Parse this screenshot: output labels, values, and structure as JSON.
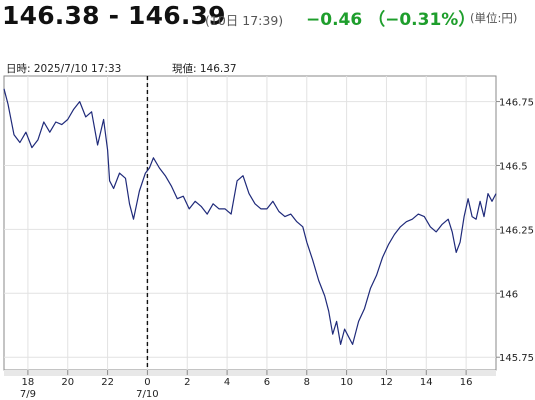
{
  "header": {
    "bid_ask": "146.38 - 146.39",
    "timestamp": "(10日 17:39)",
    "change": "−0.46 （−0.31%）",
    "unit": "(単位:円)"
  },
  "info": {
    "datetime": "日時: 2025/7/10  17:33",
    "current_price": "現値: 146.37"
  },
  "chart_data": {
    "type": "line",
    "title": "",
    "xlabel": "",
    "ylabel": "",
    "x_range_hours": [
      16.8,
      41.5
    ],
    "ylim": [
      145.7,
      146.85
    ],
    "y_ticks": [
      145.75,
      146,
      146.25,
      146.5,
      146.75
    ],
    "y_tick_labels": [
      "145.75",
      "146",
      "146.25",
      "146.5",
      "146.75"
    ],
    "x_ticks": [
      {
        "x": 18,
        "label": "18",
        "date_label": "7/9"
      },
      {
        "x": 20,
        "label": "20",
        "date_label": ""
      },
      {
        "x": 22,
        "label": "22",
        "date_label": ""
      },
      {
        "x": 24,
        "label": "0",
        "date_label": "7/10"
      },
      {
        "x": 26,
        "label": "2",
        "date_label": ""
      },
      {
        "x": 28,
        "label": "4",
        "date_label": ""
      },
      {
        "x": 30,
        "label": "6",
        "date_label": ""
      },
      {
        "x": 32,
        "label": "8",
        "date_label": ""
      },
      {
        "x": 34,
        "label": "10",
        "date_label": ""
      },
      {
        "x": 36,
        "label": "12",
        "date_label": ""
      },
      {
        "x": 38,
        "label": "14",
        "date_label": ""
      },
      {
        "x": 40,
        "label": "16",
        "date_label": ""
      }
    ],
    "day_separator_x": 24,
    "line_color": "#1f2a7a",
    "series": [
      {
        "x": [
          16.8,
          17.0,
          17.3,
          17.6,
          17.9,
          18.2,
          18.5,
          18.8,
          19.1,
          19.4,
          19.7,
          20.0,
          20.3,
          20.6,
          20.9,
          21.2,
          21.5,
          21.8,
          22.0,
          22.1,
          22.3,
          22.6,
          22.9,
          23.1,
          23.3,
          23.6,
          23.9,
          24.1,
          24.3,
          24.6,
          24.9,
          25.2,
          25.5,
          25.8,
          26.1,
          26.4,
          26.7,
          27.0,
          27.3,
          27.6,
          27.9,
          28.2,
          28.5,
          28.8,
          29.1,
          29.4,
          29.7,
          30.0,
          30.3,
          30.6,
          30.9,
          31.2,
          31.5,
          31.8,
          32.0,
          32.3,
          32.6,
          32.9,
          33.1,
          33.3,
          33.5,
          33.7,
          33.9,
          34.1,
          34.3,
          34.6,
          34.9,
          35.2,
          35.5,
          35.8,
          36.1,
          36.4,
          36.7,
          37.0,
          37.3,
          37.6,
          37.9,
          38.2,
          38.5,
          38.8,
          39.1,
          39.3,
          39.5,
          39.7,
          39.9,
          40.1,
          40.3,
          40.5,
          40.7,
          40.9,
          41.1,
          41.3,
          41.5
        ],
        "y": [
          146.8,
          146.74,
          146.62,
          146.59,
          146.63,
          146.57,
          146.6,
          146.67,
          146.63,
          146.67,
          146.66,
          146.68,
          146.72,
          146.75,
          146.69,
          146.71,
          146.58,
          146.68,
          146.56,
          146.44,
          146.41,
          146.47,
          146.45,
          146.35,
          146.29,
          146.4,
          146.47,
          146.49,
          146.53,
          146.49,
          146.46,
          146.42,
          146.37,
          146.38,
          146.33,
          146.36,
          146.34,
          146.31,
          146.35,
          146.33,
          146.33,
          146.31,
          146.44,
          146.46,
          146.39,
          146.35,
          146.33,
          146.33,
          146.36,
          146.32,
          146.3,
          146.31,
          146.28,
          146.26,
          146.2,
          146.13,
          146.05,
          145.99,
          145.93,
          145.84,
          145.89,
          145.8,
          145.86,
          145.83,
          145.8,
          145.89,
          145.94,
          146.02,
          146.07,
          146.14,
          146.19,
          146.23,
          146.26,
          146.28,
          146.29,
          146.31,
          146.3,
          146.26,
          146.24,
          146.27,
          146.29,
          146.24,
          146.16,
          146.2,
          146.3,
          146.37,
          146.3,
          146.29,
          146.36,
          146.3,
          146.39,
          146.36,
          146.39
        ]
      }
    ],
    "grid": true,
    "legend": "none"
  }
}
